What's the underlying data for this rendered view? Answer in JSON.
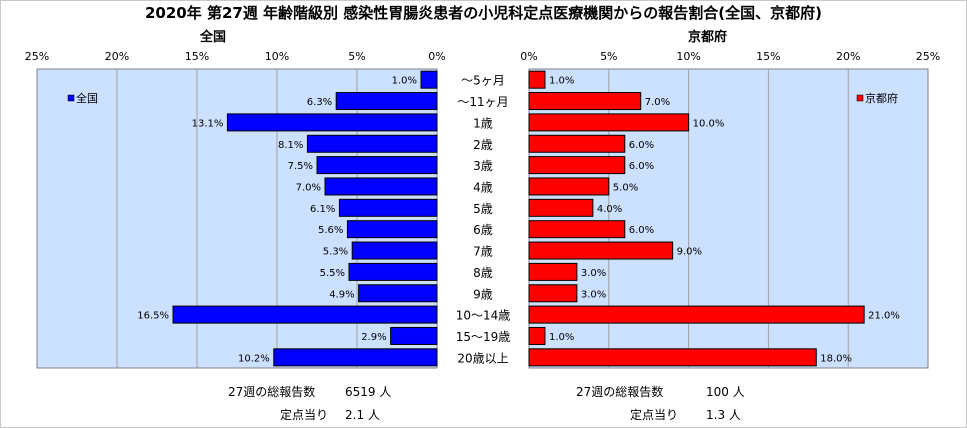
{
  "title": "2020年 第27週 年齢階級別 感染性胃腸炎患者の小児科定点医療機関からの報告割合(全国、京都府)",
  "chart_data": {
    "type": "bar",
    "orientation": "horizontal",
    "categories": [
      "～5ヶ月",
      "～11ヶ月",
      "1歳",
      "2歳",
      "3歳",
      "4歳",
      "5歳",
      "6歳",
      "7歳",
      "8歳",
      "9歳",
      "10～14歳",
      "15～19歳",
      "20歳以上"
    ],
    "xlim": [
      0,
      25
    ],
    "ticks": [
      "0%",
      "5%",
      "10%",
      "15%",
      "20%",
      "25%"
    ],
    "grid": true,
    "series": [
      {
        "name": "全国",
        "panel_title": "全国",
        "legend_position": "top-left",
        "color": "#0000ff",
        "values": [
          1.0,
          6.3,
          13.1,
          8.1,
          7.5,
          7.0,
          6.1,
          5.6,
          5.3,
          5.5,
          4.9,
          16.5,
          2.9,
          10.2
        ],
        "labels": [
          "1.0%",
          "6.3%",
          "13.1%",
          "8.1%",
          "7.5%",
          "7.0%",
          "6.1%",
          "5.6%",
          "5.3%",
          "5.5%",
          "4.9%",
          "16.5%",
          "2.9%",
          "10.2%"
        ]
      },
      {
        "name": "京都府",
        "panel_title": "京都府",
        "legend_position": "top-right",
        "color": "#ff0000",
        "values": [
          1.0,
          7.0,
          10.0,
          6.0,
          6.0,
          5.0,
          4.0,
          6.0,
          9.0,
          3.0,
          3.0,
          21.0,
          1.0,
          18.0
        ],
        "labels": [
          "1.0%",
          "7.0%",
          "10.0%",
          "6.0%",
          "6.0%",
          "5.0%",
          "4.0%",
          "6.0%",
          "9.0%",
          "3.0%",
          "3.0%",
          "21.0%",
          "1.0%",
          "18.0%"
        ]
      }
    ],
    "plot_background": "#cce0ff"
  },
  "summary": {
    "national_total_label": "27週の総報告数",
    "national_total_value": "6519 人",
    "national_per_label": "定点当り",
    "national_per_value": "2.1 人",
    "kyoto_total_label": "27週の総報告数",
    "kyoto_total_value": "100 人",
    "kyoto_per_label": "定点当り",
    "kyoto_per_value": "1.3 人"
  }
}
